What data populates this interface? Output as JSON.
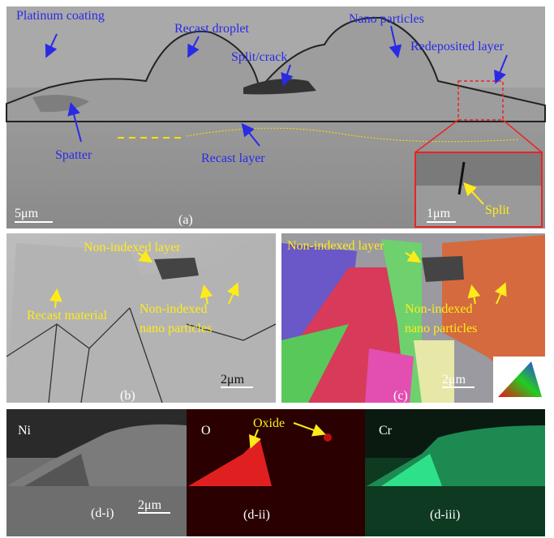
{
  "panel_a": {
    "label": "(a)",
    "scale_bar": "5μm",
    "annotations": [
      "Platinum coating",
      "Recast droplet",
      "Nano particles",
      "Redeposited layer",
      "Split/crack",
      "Spatter",
      "Recast layer"
    ],
    "inset": {
      "scale_bar": "1μm",
      "annotation": "Split"
    }
  },
  "panel_b": {
    "label": "(b)",
    "scale_bar": "2μm",
    "annotations": [
      "Non-indexed layer",
      "Recast material"
    ],
    "nano_label": [
      "Non-indexed",
      "nano particles"
    ]
  },
  "panel_c": {
    "label": "(c)",
    "scale_bar": "2μm",
    "annotations": [
      "Non-indexed layer"
    ],
    "nano_label": [
      "Non-indexed",
      "nano particles"
    ]
  },
  "panel_d": [
    {
      "element": "Ni",
      "label": "(d-i)",
      "scale_bar": "2μm"
    },
    {
      "element": "O",
      "label": "(d-ii)",
      "annotation": "Oxide"
    },
    {
      "element": "Cr",
      "label": "(d-iii)"
    }
  ]
}
